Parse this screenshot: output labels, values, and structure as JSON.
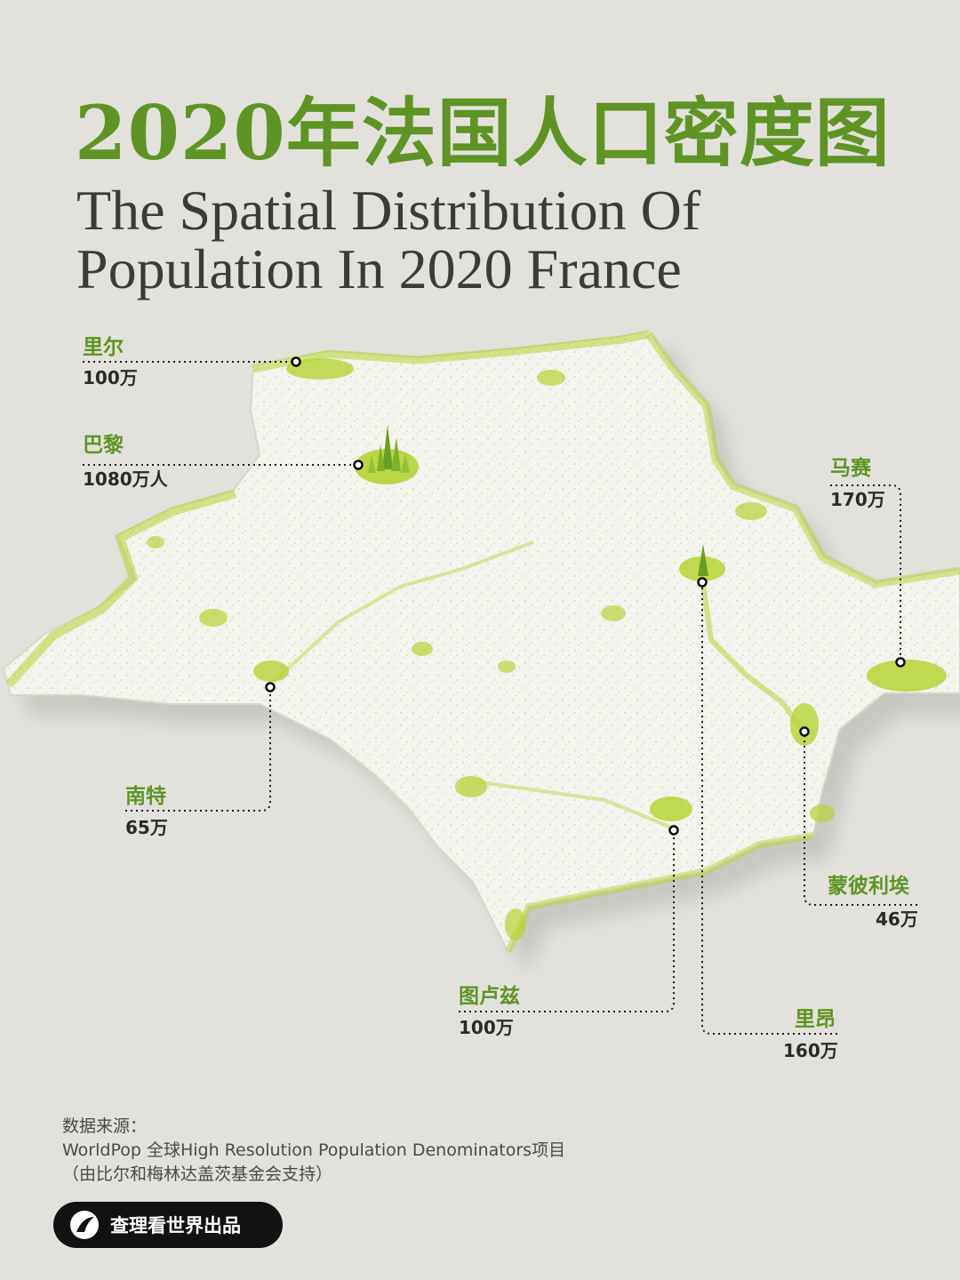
{
  "title": {
    "zh": "2020年法国人口密度图",
    "en_line1": "The Spatial Distribution Of",
    "en_line2": "Population In 2020 France"
  },
  "colors": {
    "accent": "#5f9424",
    "background": "#e3e1dc",
    "terrain": "#f4f3ee",
    "density": "#b5d334"
  },
  "cities": [
    {
      "key": "lille",
      "name": "里尔",
      "population": "100万"
    },
    {
      "key": "paris",
      "name": "巴黎",
      "population": "1080万人"
    },
    {
      "key": "marseille",
      "name": "马赛",
      "population": "170万"
    },
    {
      "key": "nantes",
      "name": "南特",
      "population": "65万"
    },
    {
      "key": "montpellier",
      "name": "蒙彼利埃",
      "population": "46万"
    },
    {
      "key": "toulouse",
      "name": "图卢兹",
      "population": "100万"
    },
    {
      "key": "lyon",
      "name": "里昂",
      "population": "160万"
    }
  ],
  "source": {
    "label": "数据来源：",
    "line1": "WorldPop 全球High Resolution Population Denominators项目",
    "line2": "（由比尔和梅林达盖茨基金会支持）"
  },
  "brand": {
    "logo_icon": "brand-logo-icon",
    "text": "查理看世界出品"
  }
}
